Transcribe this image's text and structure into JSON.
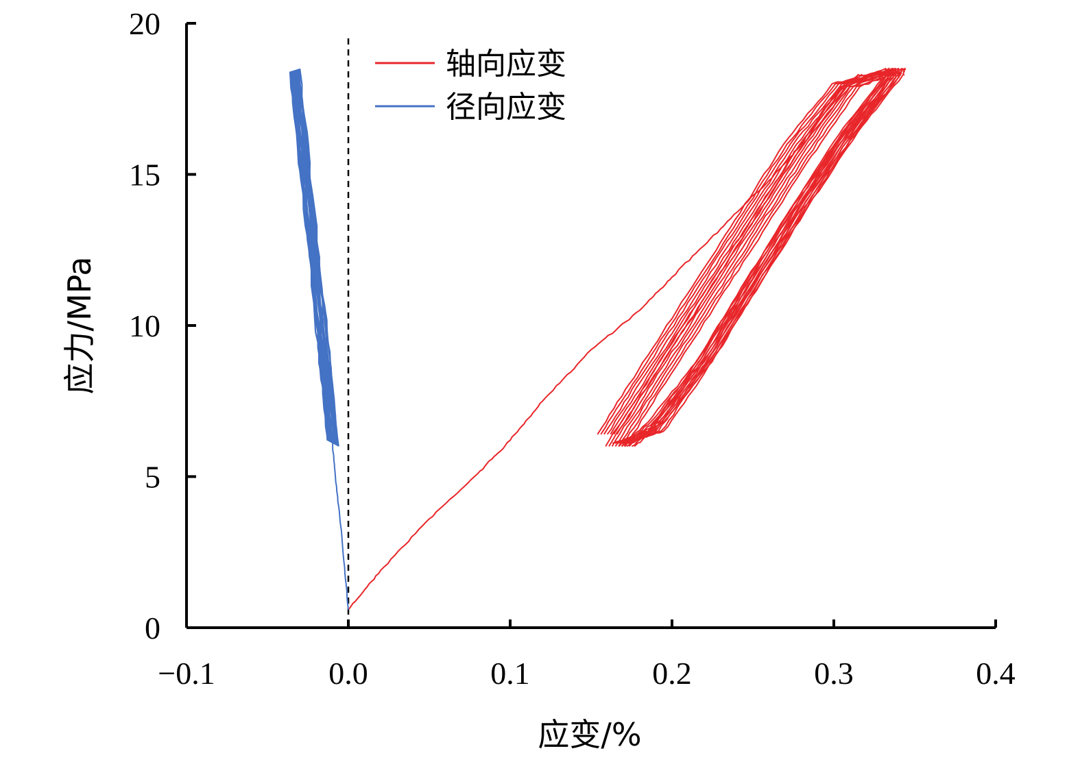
{
  "chart_data": {
    "type": "line",
    "xlabel": "应变/%",
    "ylabel": "应力/MPa",
    "xlim": [
      -0.1,
      0.4
    ],
    "ylim": [
      0,
      20
    ],
    "x_ticks": [
      "−0.1",
      "0.0",
      "0.1",
      "0.2",
      "0.3",
      "0.4"
    ],
    "x_tick_values": [
      -0.1,
      0.0,
      0.1,
      0.2,
      0.3,
      0.4
    ],
    "y_ticks": [
      "0",
      "5",
      "10",
      "15",
      "20"
    ],
    "y_tick_values": [
      0,
      5,
      10,
      15,
      20
    ],
    "grid": false,
    "legend_position": "top-center",
    "reference_line": {
      "x": 0.0,
      "style": "dashed",
      "color": "#000000"
    },
    "series": [
      {
        "name": "轴向应变",
        "color": "#e8262a",
        "loading": [
          [
            0.0,
            0.6
          ],
          [
            0.02,
            1.9
          ],
          [
            0.05,
            3.6
          ],
          [
            0.08,
            5.1
          ],
          [
            0.1,
            6.2
          ],
          [
            0.12,
            7.5
          ],
          [
            0.15,
            9.2
          ],
          [
            0.18,
            10.5
          ],
          [
            0.2,
            11.6
          ],
          [
            0.23,
            13.2
          ],
          [
            0.26,
            14.8
          ],
          [
            0.28,
            16.0
          ],
          [
            0.3,
            17.6
          ],
          [
            0.315,
            18.3
          ],
          [
            0.325,
            18.2
          ],
          [
            0.338,
            18.5
          ]
        ],
        "cycles": [
          {
            "upper": [
              [
                0.165,
                6.0
              ],
              [
                0.19,
                8.1
              ],
              [
                0.22,
                10.6
              ],
              [
                0.25,
                13.1
              ],
              [
                0.28,
                15.6
              ],
              [
                0.31,
                17.9
              ],
              [
                0.338,
                18.5
              ]
            ],
            "lower": [
              [
                0.338,
                18.3
              ],
              [
                0.31,
                16.4
              ],
              [
                0.28,
                14.0
              ],
              [
                0.25,
                11.4
              ],
              [
                0.22,
                8.8
              ],
              [
                0.19,
                6.8
              ],
              [
                0.172,
                6.0
              ]
            ]
          },
          {
            "upper": [
              [
                0.16,
                6.4
              ],
              [
                0.185,
                8.5
              ],
              [
                0.215,
                11.0
              ],
              [
                0.245,
                13.5
              ],
              [
                0.275,
                16.0
              ],
              [
                0.305,
                18.0
              ],
              [
                0.335,
                18.4
              ]
            ],
            "lower": [
              [
                0.335,
                18.2
              ],
              [
                0.305,
                16.1
              ],
              [
                0.275,
                13.6
              ],
              [
                0.245,
                11.0
              ],
              [
                0.215,
                8.4
              ],
              [
                0.19,
                6.5
              ],
              [
                0.168,
                6.1
              ]
            ]
          }
        ]
      },
      {
        "name": "径向应变",
        "color": "#4472c4",
        "loading": [
          [
            0.0,
            0.6
          ],
          [
            -0.004,
            3.0
          ],
          [
            -0.008,
            5.0
          ],
          [
            -0.01,
            6.2
          ]
        ],
        "band": {
          "top": [
            [
              -0.036,
              18.4
            ],
            [
              -0.03,
              18.5
            ]
          ],
          "bottom": [
            [
              -0.013,
              6.2
            ],
            [
              -0.006,
              6.0
            ]
          ]
        }
      }
    ]
  }
}
